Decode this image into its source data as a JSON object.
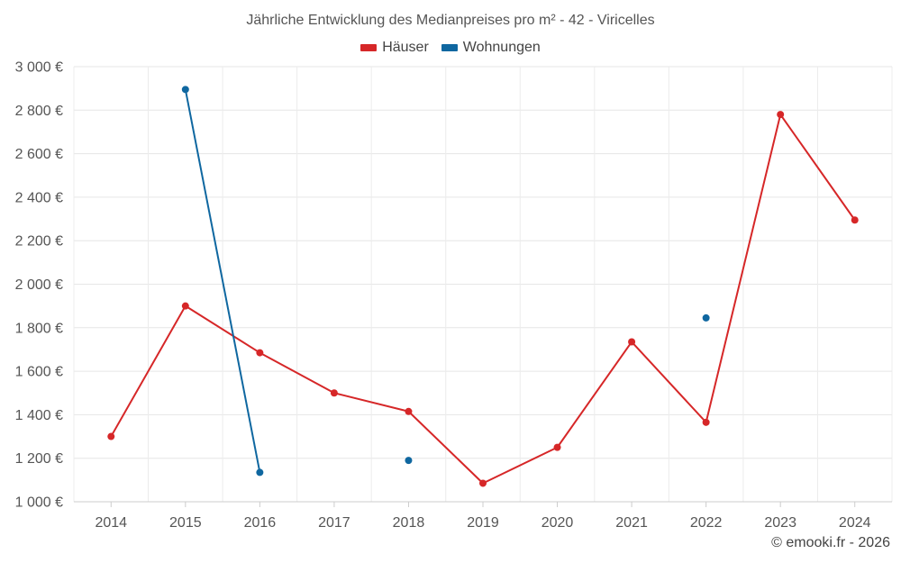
{
  "chart_data": {
    "type": "line",
    "title": "Jährliche Entwicklung des Medianpreises pro m² - 42 - Viricelles",
    "categories": [
      "2014",
      "2015",
      "2016",
      "2017",
      "2018",
      "2019",
      "2020",
      "2021",
      "2022",
      "2023",
      "2024"
    ],
    "series": [
      {
        "name": "Häuser",
        "color": "#d62728",
        "values": [
          1300,
          1900,
          1685,
          1500,
          1415,
          1085,
          1250,
          1735,
          1365,
          2780,
          2295
        ]
      },
      {
        "name": "Wohnungen",
        "color": "#0f67a0",
        "values": [
          null,
          2895,
          1135,
          null,
          1190,
          null,
          null,
          null,
          1845,
          null,
          null
        ]
      }
    ],
    "ylim": [
      1000,
      3000
    ],
    "yticks": [
      1000,
      1200,
      1400,
      1600,
      1800,
      2000,
      2200,
      2400,
      2600,
      2800,
      3000
    ],
    "ytick_labels": [
      "1 000 €",
      "1 200 €",
      "1 400 €",
      "1 600 €",
      "1 800 €",
      "2 000 €",
      "2 200 €",
      "2 400 €",
      "2 600 €",
      "2 800 €",
      "3 000 €"
    ],
    "grid": true,
    "legend_position": "top-center"
  },
  "credit": "© emooki.fr - 2026"
}
